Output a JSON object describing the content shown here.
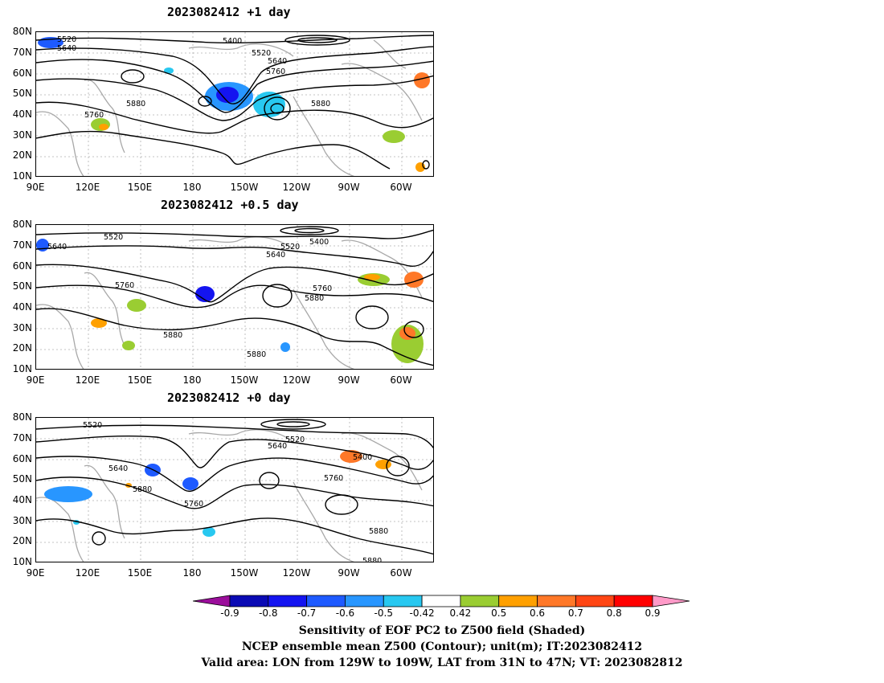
{
  "panels": [
    {
      "title": "2023082412  +1 day",
      "y_ticks": [
        "80N",
        "70N",
        "60N",
        "50N",
        "40N",
        "30N",
        "20N",
        "10N"
      ],
      "x_ticks": [
        "90E",
        "120E",
        "150E",
        "180",
        "150W",
        "120W",
        "90W",
        "60W"
      ],
      "contour_labels": [
        "5520",
        "5640",
        "5400",
        "5520",
        "5640",
        "5760",
        "5760",
        "5880",
        "5880"
      ]
    },
    {
      "title": "2023082412  +0.5 day",
      "y_ticks": [
        "80N",
        "70N",
        "60N",
        "50N",
        "40N",
        "30N",
        "20N",
        "10N"
      ],
      "x_ticks": [
        "90E",
        "120E",
        "150E",
        "180",
        "150W",
        "120W",
        "90W",
        "60W"
      ],
      "contour_labels": [
        "5640",
        "5520",
        "5520",
        "5400",
        "5640",
        "5760",
        "5760",
        "5880",
        "5880",
        "5880"
      ]
    },
    {
      "title": "2023082412  +0 day",
      "y_ticks": [
        "80N",
        "70N",
        "60N",
        "50N",
        "40N",
        "30N",
        "20N",
        "10N"
      ],
      "x_ticks": [
        "90E",
        "120E",
        "150E",
        "180",
        "150W",
        "120W",
        "90W",
        "60W"
      ],
      "contour_labels": [
        "5520",
        "5520",
        "5640",
        "5640",
        "5400",
        "5880",
        "5760",
        "5760",
        "5880",
        "5880"
      ]
    }
  ],
  "colorbar": {
    "labels": [
      "-0.9",
      "-0.8",
      "-0.7",
      "-0.6",
      "-0.5",
      "-0.42",
      "0.42",
      "0.5",
      "0.6",
      "0.7",
      "0.8",
      "0.9"
    ],
    "colors": [
      "#9b0e9b",
      "#0a0ab4",
      "#1414f0",
      "#1e5aff",
      "#2896ff",
      "#28c8f0",
      "#ffffff",
      "#9acd32",
      "#ffa000",
      "#ff7828",
      "#ff4614",
      "#ff0000",
      "#ff9ac8"
    ]
  },
  "caption": {
    "line1": "Sensitivity of EOF PC2 to Z500 field (Shaded)",
    "line2": "NCEP ensemble mean Z500 (Contour); unit(m); IT:2023082412",
    "line3": "Valid area: LON from 129W to 109W, LAT from 31N to 47N; VT: 2023082812"
  }
}
